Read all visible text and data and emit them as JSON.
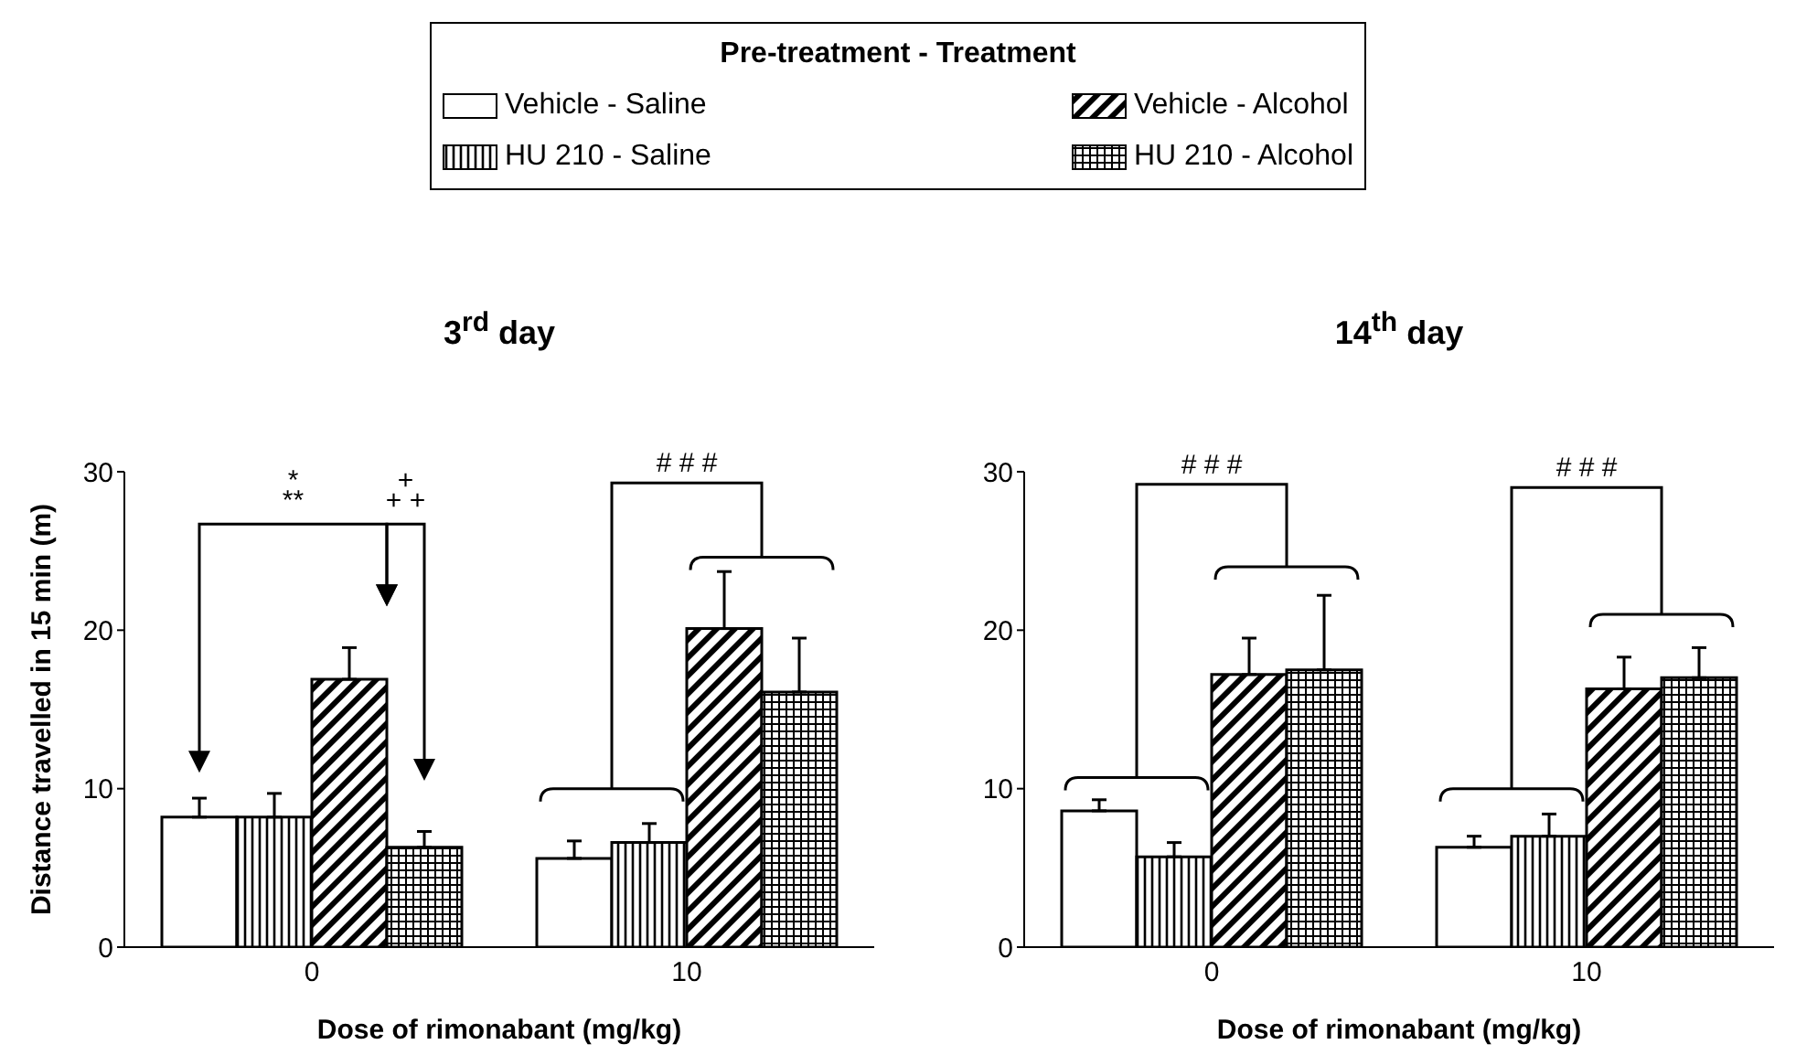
{
  "chart_data": [
    {
      "type": "bar",
      "title": "3$^{rd}$ day",
      "xlabel": "Dose of rimonabant (mg/kg)",
      "ylabel": "Distance travelled in 15 min (m)",
      "legend_title": "Pre-treatment - Treatment",
      "legend": "top",
      "categories": [
        "0",
        "10"
      ],
      "ylim": [
        0,
        30
      ],
      "yticks": [
        0,
        10,
        20,
        30
      ],
      "series": [
        {
          "name": "Vehicle - Saline",
          "color": "#ffffff",
          "values": [
            8.2,
            5.6
          ],
          "errors": [
            [
              8.2,
              9.4
            ],
            [
              5.6,
              6.7
            ]
          ]
        },
        {
          "name": "HU 210 - Saline",
          "color": "#000000",
          "values": [
            8.2,
            6.6
          ],
          "errors": [
            [
              8.2,
              9.7
            ],
            [
              6.6,
              7.8
            ]
          ]
        },
        {
          "name": "Vehicle - Alcohol",
          "color": "#000000",
          "values": [
            16.9,
            20.1
          ],
          "errors": [
            [
              16.9,
              18.9
            ],
            [
              20.1,
              23.7
            ]
          ]
        },
        {
          "name": "HU 210 - Alcohol",
          "color": "#000000",
          "values": [
            6.3,
            16.1
          ],
          "errors": [
            [
              6.3,
              7.3
            ],
            [
              16.1,
              19.5
            ]
          ]
        }
      ],
      "annotations": [
        "*",
        "**",
        "+",
        "+ +",
        "# # #"
      ]
    },
    {
      "type": "bar",
      "title": "14$^{th}$ day",
      "xlabel": "Dose of rimonabant (mg/kg)",
      "categories": [
        "0",
        "10"
      ],
      "ylim": [
        0,
        30
      ],
      "yticks": [
        0,
        10,
        20,
        30
      ],
      "series": [
        {
          "color": "#ffffff",
          "values": [
            8.6,
            6.3
          ],
          "errors": [
            [
              8.6,
              9.3
            ],
            [
              6.3,
              7.0
            ]
          ]
        },
        {
          "color": "#000000",
          "values": [
            5.7,
            7.0
          ],
          "errors": [
            [
              5.7,
              6.6
            ],
            [
              7.0,
              8.4
            ]
          ]
        },
        {
          "color": "#000000",
          "values": [
            17.2,
            16.3
          ],
          "errors": [
            [
              17.2,
              19.5
            ],
            [
              16.3,
              18.3
            ]
          ]
        },
        {
          "color": "#000000",
          "values": [
            17.5,
            17.0
          ],
          "errors": [
            [
              17.5,
              22.2
            ],
            [
              17.0,
              18.9
            ]
          ]
        }
      ],
      "annotations": [
        "# # #",
        "# # #"
      ]
    }
  ]
}
